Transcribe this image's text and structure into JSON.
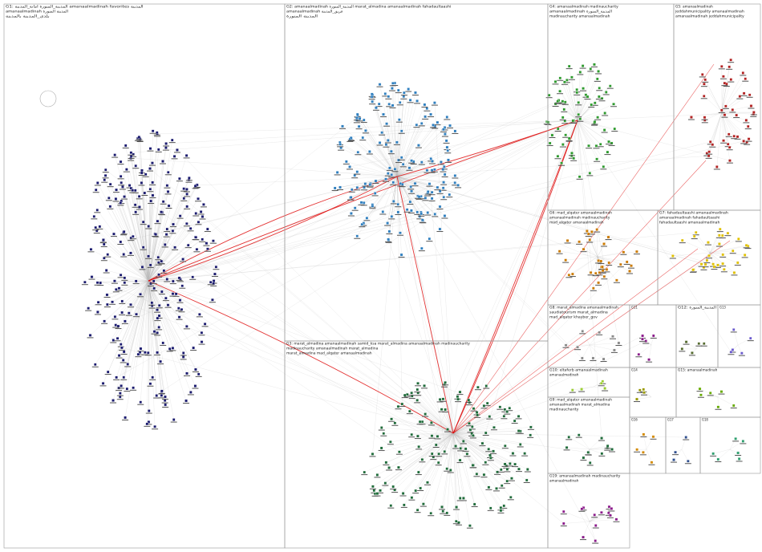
{
  "groups": [
    {
      "label": "G1: المدينة_المنورة امانة_المدينة amanaalmadinah favorites المدينة",
      "lines": [
        "amanaalmadinah المدينة المنورة",
        "بلدي_المدينة بالمدينة"
      ]
    },
    {
      "label": "G2: amanaalmadinah المدينة_المنورة marat_almadina amanaalmadinah fahadaultaashi",
      "lines": [
        "amanaalmadinah فريق_المدينة",
        "المدينة المنورة"
      ]
    },
    {
      "label": "G3: marat_almadina amanaalmadinah samid_ksa marat_almadina amanaalmadinah madinaucharity",
      "lines": [
        "madinaucharity amanaalmadinah marat_almadina",
        "marat_almadina mad_alqater amanaalmadinah"
      ]
    },
    {
      "label": "G4: amanaalmadinah madinaucharity",
      "lines": [
        "amanaalmadinah المدينة_المنورة",
        "madinaucharity amanaalmadinah"
      ]
    },
    {
      "label": "G5: amanaalmadinah",
      "lines": [
        "jeddahmunicipality amanaalmadinah",
        "amanaalmadinah jeddahmunicipality"
      ]
    },
    {
      "label": "G6: mad_alqater amanaalmadinah",
      "lines": [
        "amanaalmadinah madinaucharity",
        "mad_alqater amanaalmadinah"
      ]
    },
    {
      "label": "G7: fahadaultaashi amanaalmadinah",
      "lines": [
        "amanaalmadinah fahadaultaashi",
        "fahadaultaashi amanaalmadinah"
      ]
    },
    {
      "label": "G8: marat_almadina amanaalmadinah",
      "lines": [
        "saudiatourism marat_almadina",
        "mad_alqater khayber_gov"
      ]
    },
    {
      "label": "G9: mad_alqater amanaalmadinah",
      "lines": [
        "amanaalmadinah marat_almadina",
        "madinaucharity"
      ]
    },
    {
      "label": "G10: eltaferb amanaalmadinah",
      "lines": [
        "amanaalmadinah"
      ]
    },
    {
      "label": "G11",
      "lines": []
    },
    {
      "label": "G12: المدينة_المنورة",
      "lines": []
    },
    {
      "label": "G13",
      "lines": []
    },
    {
      "label": "G14",
      "lines": []
    },
    {
      "label": "G15: amanaalmadinah",
      "lines": []
    },
    {
      "label": "G16",
      "lines": []
    },
    {
      "label": "G17",
      "lines": []
    },
    {
      "label": "G18",
      "lines": []
    },
    {
      "label": "G19: amanaalmadinah madinaucharity",
      "lines": [
        "amanaalmadinah"
      ]
    }
  ]
}
